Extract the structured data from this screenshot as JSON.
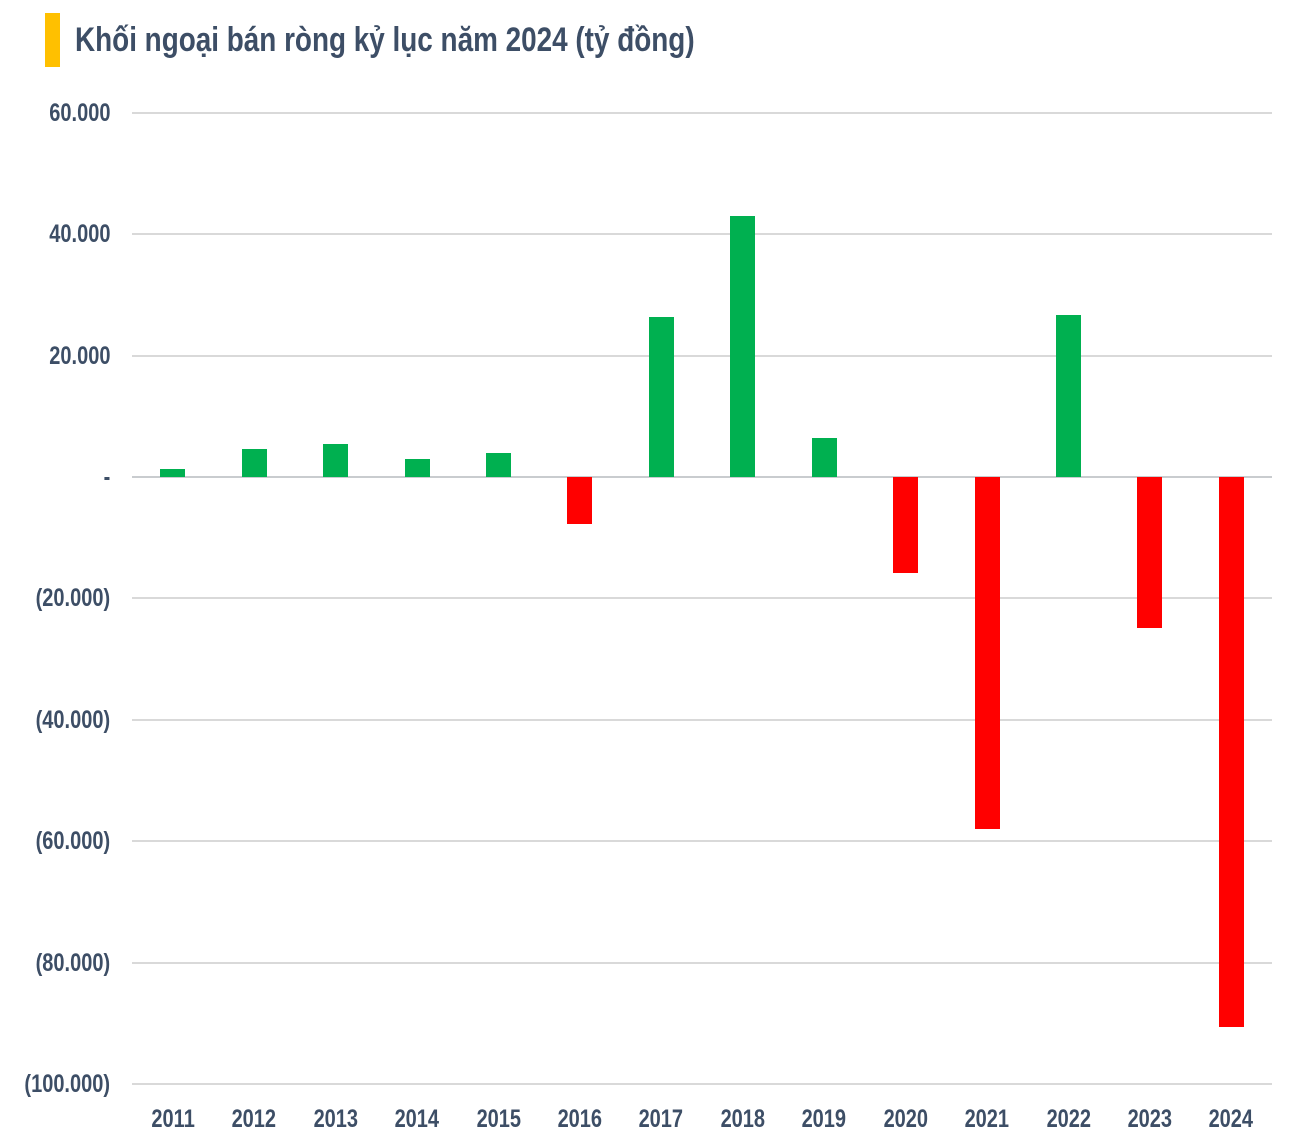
{
  "header": {
    "title": "Khối ngoại bán ròng kỷ lục năm 2024 (tỷ đồng)"
  },
  "colors": {
    "accent": "#FFC000",
    "text": "#3D4E66",
    "gridline": "#D9D9D9",
    "zero_line": "#C9CCCF",
    "positive": "#00B050",
    "negative": "#FF0000",
    "background": "#FFFFFF"
  },
  "chart_data": {
    "type": "bar",
    "title": "Khối ngoại bán ròng kỷ lục năm 2024 (tỷ đồng)",
    "unit": "tỷ đồng",
    "categories": [
      "2011",
      "2012",
      "2013",
      "2014",
      "2015",
      "2016",
      "2017",
      "2018",
      "2019",
      "2020",
      "2021",
      "2022",
      "2023",
      "2024"
    ],
    "values": [
      1300,
      4600,
      5500,
      2900,
      4000,
      -7700,
      26400,
      43000,
      6400,
      -15800,
      -58000,
      26700,
      -24900,
      -90600
    ],
    "positive_color": "#00B050",
    "negative_color": "#FF0000",
    "ylim": [
      -100000,
      60000
    ],
    "y_ticks": [
      {
        "value": 60000,
        "label": "60.000"
      },
      {
        "value": 40000,
        "label": "40.000"
      },
      {
        "value": 20000,
        "label": "20.000"
      },
      {
        "value": 0,
        "label": "-"
      },
      {
        "value": -20000,
        "label": "(20.000)"
      },
      {
        "value": -40000,
        "label": "(40.000)"
      },
      {
        "value": -60000,
        "label": "(60.000)"
      },
      {
        "value": -80000,
        "label": "(80.000)"
      },
      {
        "value": -100000,
        "label": "(100.000)"
      }
    ],
    "grid": true,
    "legend": false
  }
}
